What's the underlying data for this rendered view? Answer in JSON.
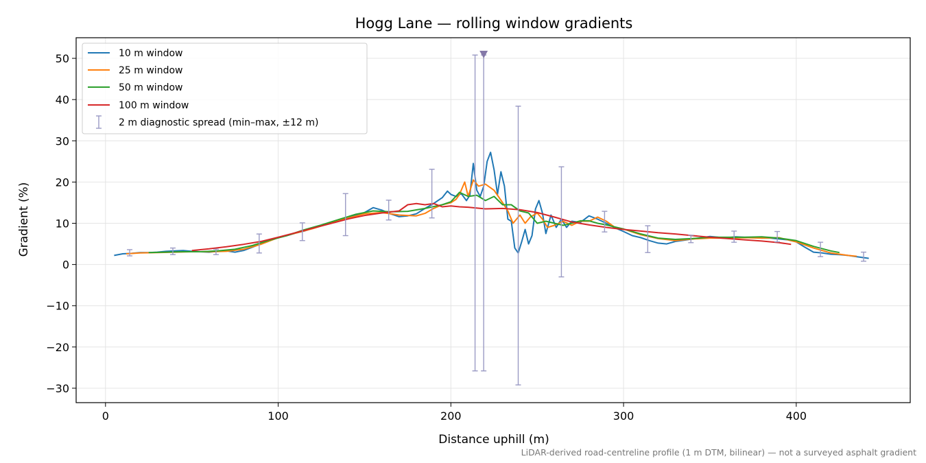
{
  "chart_data": {
    "type": "line",
    "title": "Hogg Lane — rolling window gradients",
    "xlabel": "Distance uphill (m)",
    "ylabel": "Gradient (%)",
    "xlim": [
      -17,
      466
    ],
    "ylim": [
      -33.5,
      55
    ],
    "xticks": [
      0,
      100,
      200,
      300,
      400
    ],
    "xtick_labels": [
      "0",
      "100",
      "200",
      "300",
      "400"
    ],
    "yticks": [
      -30,
      -20,
      -10,
      0,
      10,
      20,
      30,
      40,
      50
    ],
    "ytick_labels": [
      "−30",
      "−20",
      "−10",
      "0",
      "10",
      "20",
      "30",
      "40",
      "50"
    ],
    "grid": true,
    "legend_position": "upper-left",
    "footnote": "LiDAR-derived road-centreline profile (1 m DTM, bilinear) — not a surveyed asphalt gradient",
    "series": [
      {
        "name": "10 m window",
        "color": "#1f77b4",
        "x": [
          5,
          10,
          15,
          20,
          25,
          30,
          35,
          40,
          45,
          50,
          55,
          60,
          65,
          70,
          75,
          80,
          85,
          90,
          95,
          100,
          105,
          110,
          115,
          120,
          125,
          130,
          135,
          140,
          145,
          150,
          155,
          160,
          165,
          170,
          175,
          180,
          185,
          190,
          195,
          198,
          200,
          203,
          206,
          209,
          211,
          213,
          215,
          217,
          219,
          221,
          223,
          225,
          227,
          229,
          231,
          233,
          235,
          237,
          239,
          241,
          243,
          245,
          247,
          249,
          251,
          253,
          255,
          258,
          261,
          264,
          267,
          270,
          275,
          280,
          285,
          290,
          295,
          300,
          305,
          310,
          315,
          320,
          325,
          330,
          335,
          340,
          345,
          350,
          355,
          360,
          365,
          370,
          375,
          380,
          385,
          390,
          395,
          400,
          405,
          410,
          415,
          420,
          425,
          430,
          435,
          442
        ],
        "y": [
          2.2,
          2.6,
          2.7,
          2.9,
          2.9,
          3.0,
          3.2,
          3.3,
          3.4,
          3.2,
          3.1,
          3.0,
          3.2,
          3.3,
          3.0,
          3.4,
          4.2,
          5.0,
          5.8,
          6.5,
          7.0,
          7.6,
          8.1,
          8.8,
          9.5,
          10.2,
          10.8,
          11.2,
          11.9,
          12.6,
          13.8,
          13.2,
          12.3,
          11.6,
          11.8,
          12.3,
          13.6,
          14.8,
          16.2,
          17.8,
          17.0,
          16.5,
          17.2,
          15.5,
          16.8,
          24.5,
          18.0,
          16.5,
          19.0,
          25.0,
          27.2,
          23.0,
          17.0,
          22.5,
          19.0,
          11.0,
          10.5,
          4.0,
          2.8,
          5.5,
          8.5,
          5.0,
          7.0,
          13.5,
          15.5,
          12.5,
          7.5,
          12.0,
          9.0,
          11.0,
          9.0,
          10.5,
          10.2,
          11.8,
          11.0,
          10.0,
          8.9,
          8.0,
          7.0,
          6.5,
          5.8,
          5.2,
          5.0,
          5.6,
          5.9,
          6.2,
          6.5,
          6.8,
          6.6,
          6.5,
          6.7,
          6.6,
          6.6,
          6.4,
          6.4,
          6.2,
          6.0,
          5.5,
          4.2,
          3.0,
          2.8,
          2.5,
          2.4,
          2.2,
          1.9,
          1.5
        ]
      },
      {
        "name": "25 m window",
        "color": "#ff7f0e",
        "x": [
          12,
          20,
          30,
          40,
          50,
          60,
          70,
          80,
          90,
          100,
          110,
          120,
          130,
          140,
          150,
          160,
          170,
          180,
          185,
          190,
          195,
          200,
          203,
          205,
          208,
          210,
          213,
          216,
          220,
          225,
          230,
          233,
          236,
          240,
          243,
          246,
          250,
          253,
          256,
          260,
          265,
          270,
          275,
          280,
          285,
          290,
          295,
          300,
          310,
          320,
          330,
          340,
          350,
          360,
          370,
          380,
          390,
          400,
          410,
          420,
          430,
          435
        ],
        "y": [
          2.6,
          2.8,
          2.9,
          3.0,
          3.1,
          3.1,
          3.2,
          3.7,
          4.9,
          6.5,
          7.6,
          8.7,
          10.0,
          11.2,
          12.3,
          12.6,
          12.0,
          11.8,
          12.4,
          13.6,
          14.5,
          15.0,
          15.8,
          17.0,
          20.0,
          16.5,
          20.5,
          19.0,
          19.5,
          18.0,
          15.0,
          13.0,
          10.0,
          12.0,
          10.0,
          11.5,
          12.5,
          11.0,
          9.0,
          9.5,
          10.5,
          9.5,
          10.5,
          10.5,
          11.5,
          10.5,
          9.0,
          8.6,
          7.2,
          6.3,
          5.8,
          6.2,
          6.4,
          6.4,
          6.5,
          6.4,
          6.5,
          5.5,
          4.0,
          2.8,
          2.2,
          2.0
        ]
      },
      {
        "name": "50 m window",
        "color": "#2ca02c",
        "x": [
          25,
          35,
          45,
          55,
          65,
          75,
          85,
          95,
          105,
          115,
          125,
          135,
          145,
          155,
          165,
          175,
          185,
          195,
          200,
          205,
          210,
          215,
          220,
          225,
          230,
          235,
          240,
          245,
          250,
          255,
          260,
          265,
          270,
          275,
          280,
          285,
          290,
          300,
          310,
          320,
          330,
          340,
          350,
          360,
          370,
          380,
          390,
          400,
          410,
          420,
          425
        ],
        "y": [
          2.9,
          3.0,
          3.1,
          3.1,
          3.3,
          3.7,
          4.6,
          5.9,
          7.0,
          8.4,
          9.6,
          10.9,
          12.2,
          13.0,
          12.8,
          12.9,
          13.6,
          14.5,
          15.2,
          17.5,
          16.5,
          16.8,
          15.5,
          16.5,
          14.5,
          14.5,
          13.0,
          12.5,
          10.0,
          10.5,
          10.0,
          9.5,
          10.0,
          10.6,
          10.6,
          10.0,
          9.6,
          8.6,
          7.4,
          6.4,
          6.1,
          6.3,
          6.6,
          6.6,
          6.6,
          6.7,
          6.4,
          5.8,
          4.4,
          3.3,
          2.9
        ]
      },
      {
        "name": "100 m window",
        "color": "#d62728",
        "x": [
          50,
          60,
          70,
          80,
          90,
          100,
          110,
          120,
          130,
          140,
          150,
          160,
          170,
          175,
          180,
          185,
          190,
          195,
          200,
          205,
          210,
          220,
          230,
          240,
          250,
          260,
          270,
          280,
          290,
          300,
          310,
          320,
          330,
          340,
          350,
          360,
          370,
          380,
          390,
          397
        ],
        "y": [
          3.4,
          3.8,
          4.3,
          4.9,
          5.6,
          6.6,
          7.7,
          8.8,
          9.9,
          11.0,
          11.9,
          12.5,
          13.0,
          14.5,
          14.8,
          14.5,
          14.8,
          14.0,
          14.2,
          14.0,
          13.9,
          13.5,
          13.6,
          13.3,
          12.6,
          11.5,
          10.3,
          9.6,
          9.0,
          8.5,
          8.1,
          7.7,
          7.4,
          7.0,
          6.6,
          6.3,
          6.0,
          5.7,
          5.3,
          4.9
        ]
      }
    ],
    "errorbars": {
      "name": "2 m diagnostic spread (min–max, ±12 m)",
      "color": "#9a9ac4",
      "x": [
        14,
        39,
        64,
        89,
        114,
        139,
        164,
        189,
        214,
        219,
        239,
        264,
        289,
        314,
        339,
        364,
        389,
        414,
        439
      ],
      "lower": [
        2.1,
        2.4,
        2.4,
        2.8,
        5.8,
        7.0,
        10.8,
        11.3,
        -25.8,
        -25.8,
        -29.2,
        -3.0,
        7.9,
        2.9,
        5.3,
        5.4,
        5.5,
        1.9,
        0.8
      ],
      "upper": [
        3.6,
        4.0,
        3.7,
        7.4,
        10.1,
        17.2,
        15.6,
        23.1,
        50.8,
        50.8,
        38.4,
        23.7,
        12.9,
        9.4,
        7.1,
        8.1,
        8.0,
        5.4,
        3.0
      ],
      "clipped_marker_x": 219,
      "clipped_marker_y": 51
    }
  }
}
